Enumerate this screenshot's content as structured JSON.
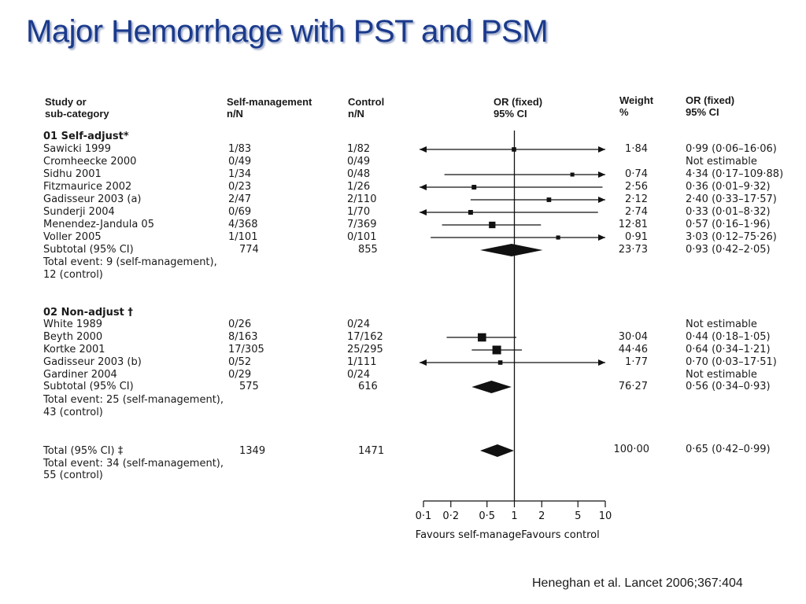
{
  "slide_title": "Major Hemorrhage with PST and PSM",
  "citation": "Heneghan et al. Lancet 2006;367:404",
  "headers": {
    "study": [
      "Study or",
      "sub-category"
    ],
    "self": [
      "Self-management",
      "n/N"
    ],
    "control": [
      "Control",
      "n/N"
    ],
    "or": [
      "OR (fixed)",
      "95% CI"
    ],
    "weight": [
      "Weight",
      "%"
    ],
    "orci": [
      "OR (fixed)",
      "95% CI"
    ]
  },
  "groups": [
    {
      "heading": "01 Self-adjust*",
      "rows": [
        {
          "study": "Sawicki 1999",
          "self": "1/83",
          "control": "1/82",
          "weight": "1·84",
          "orci": "0·99 (0·06–16·06)",
          "or": 0.99,
          "lo": 0.06,
          "hi": 16.06,
          "w": 1.84
        },
        {
          "study": "Cromheecke 2000",
          "self": "0/49",
          "control": "0/49",
          "weight": "",
          "orci": "Not estimable"
        },
        {
          "study": "Sidhu 2001",
          "self": "1/34",
          "control": "0/48",
          "weight": "0·74",
          "orci": "4·34 (0·17–109·88)",
          "or": 4.34,
          "lo": 0.17,
          "hi": 109.88,
          "w": 0.74
        },
        {
          "study": "Fitzmaurice 2002",
          "self": "0/23",
          "control": "1/26",
          "weight": "2·56",
          "orci": "0·36 (0·01–9·32)",
          "or": 0.36,
          "lo": 0.01,
          "hi": 9.32,
          "w": 2.56
        },
        {
          "study": "Gadisseur 2003 (a)",
          "self": "2/47",
          "control": "2/110",
          "weight": "2·12",
          "orci": "2·40 (0·33–17·57)",
          "or": 2.4,
          "lo": 0.33,
          "hi": 17.57,
          "w": 2.12
        },
        {
          "study": "Sunderji 2004",
          "self": "0/69",
          "control": "1/70",
          "weight": "2·74",
          "orci": "0·33 (0·01–8·32)",
          "or": 0.33,
          "lo": 0.01,
          "hi": 8.32,
          "w": 2.74
        },
        {
          "study": "Menendez-Jandula 05",
          "self": "4/368",
          "control": "7/369",
          "weight": "12·81",
          "orci": "0·57 (0·16–1·96)",
          "or": 0.57,
          "lo": 0.16,
          "hi": 1.96,
          "w": 12.81
        },
        {
          "study": "Voller 2005",
          "self": "1/101",
          "control": "0/101",
          "weight": "0·91",
          "orci": "3·03 (0·12–75·26)",
          "or": 3.03,
          "lo": 0.12,
          "hi": 75.26,
          "w": 0.91
        }
      ],
      "subtotal": {
        "label": "Subtotal (95% CI)",
        "self": "774",
        "control": "855",
        "weight": "23·73",
        "orci": "0·93 (0·42–2·05)",
        "or": 0.93,
        "lo": 0.42,
        "hi": 2.05
      },
      "events": [
        "Total event: 9 (self-management),",
        "12 (control)"
      ]
    },
    {
      "heading": "02 Non-adjust †",
      "rows": [
        {
          "study": "White 1989",
          "self": "0/26",
          "control": "0/24",
          "weight": "",
          "orci": "Not estimable"
        },
        {
          "study": "Beyth 2000",
          "self": "8/163",
          "control": "17/162",
          "weight": "30·04",
          "orci": "0·44  (0·18–1·05)",
          "or": 0.44,
          "lo": 0.18,
          "hi": 1.05,
          "w": 30.04
        },
        {
          "study": "Kortke 2001",
          "self": "17/305",
          "control": "25/295",
          "weight": "44·46",
          "orci": "0·64 (0·34–1·21)",
          "or": 0.64,
          "lo": 0.34,
          "hi": 1.21,
          "w": 44.46
        },
        {
          "study": "Gadisseur 2003 (b)",
          "self": "0/52",
          "control": "1/111",
          "weight": "1·77",
          "orci": "0·70 (0·03–17·51)",
          "or": 0.7,
          "lo": 0.03,
          "hi": 17.51,
          "w": 1.77
        },
        {
          "study": "Gardiner 2004",
          "self": "0/29",
          "control": "0/24",
          "weight": "",
          "orci": "Not estimable"
        }
      ],
      "subtotal": {
        "label": "Subtotal (95% CI)",
        "self": "575",
        "control": "616",
        "weight": "76·27",
        "orci": "0·56 (0·34–0·93)",
        "or": 0.56,
        "lo": 0.34,
        "hi": 0.93
      },
      "events": [
        "Total event: 25 (self-management),",
        "43 (control)"
      ]
    }
  ],
  "total": {
    "label": "Total (95% CI) ‡",
    "self": "1349",
    "control": "1471",
    "weight": "100·00",
    "orci": "0·65 (0·42–0·99)",
    "or": 0.65,
    "lo": 0.42,
    "hi": 0.99,
    "events": [
      "Total event: 34 (self-management),",
      "55 (control)"
    ]
  },
  "chart_data": {
    "type": "forest",
    "x_scale": "log",
    "xlim": [
      0.1,
      10
    ],
    "x_ticks": [
      0.1,
      0.2,
      0.5,
      1,
      2,
      5,
      10
    ],
    "x_tick_labels": [
      "0·1",
      "0·2",
      "0·5",
      "1",
      "2",
      "5",
      "10"
    ],
    "favours_left": "Favours self-manage",
    "favours_right": "Favours control"
  }
}
